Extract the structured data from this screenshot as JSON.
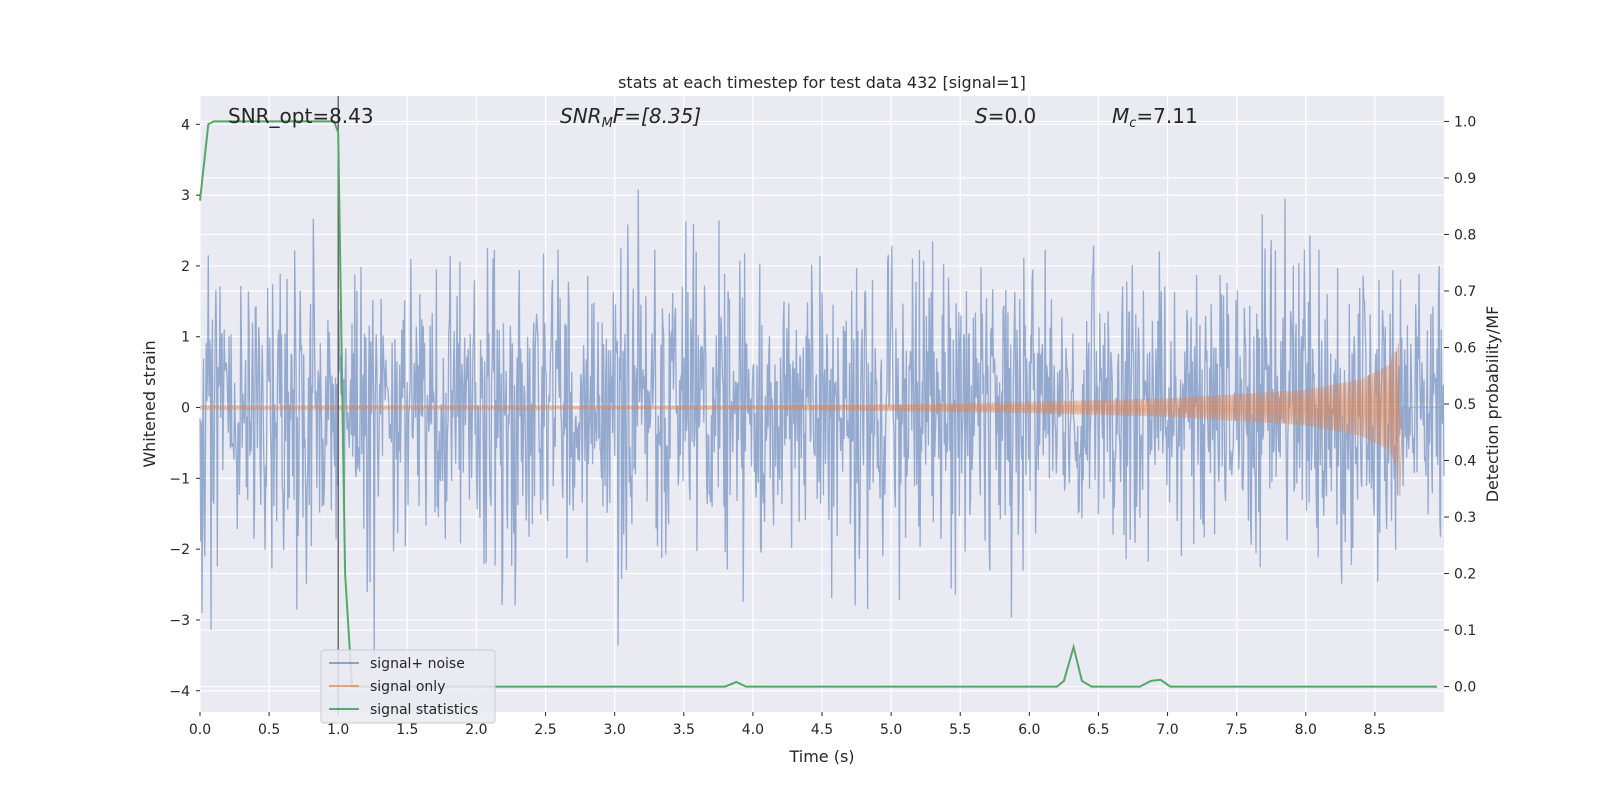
{
  "chart_data": {
    "type": "line",
    "title": "stats at each timestep for test data 432 [signal=1]",
    "xlabel": "Time (s)",
    "ylabel": "Whitened strain",
    "ylabel_right": "Detection probability/MF",
    "xlim": [
      0.0,
      9.0
    ],
    "ylim": [
      -4.3,
      4.4
    ],
    "ylim_right": [
      -0.045,
      1.045
    ],
    "x_ticks": [
      "0.0",
      "0.5",
      "1.0",
      "1.5",
      "2.0",
      "2.5",
      "3.0",
      "3.5",
      "4.0",
      "4.5",
      "5.0",
      "5.5",
      "6.0",
      "6.5",
      "7.0",
      "7.5",
      "8.0",
      "8.5"
    ],
    "y_ticks": [
      "4",
      "3",
      "2",
      "1",
      "0",
      "−1",
      "−2",
      "−3",
      "−4"
    ],
    "y_ticks_right": [
      "1.0",
      "0.9",
      "0.8",
      "0.7",
      "0.6",
      "0.5",
      "0.4",
      "0.3",
      "0.2",
      "0.1",
      "0.0"
    ],
    "grid": true,
    "legend_position": "lower-left",
    "annotations": {
      "snr_opt": "SNR_opt=8.43",
      "snr_mf_base": "SNR",
      "snr_mf_sub": "M",
      "snr_mf_rest": "F=[8.35]",
      "s_var": "S",
      "s_rest": "=0.0",
      "mc_var": "M",
      "mc_sub": "c",
      "mc_rest": "=7.11"
    },
    "vline_x": 1.0,
    "series": [
      {
        "name": "signal+ noise",
        "color": "#4c72b0",
        "axis": "left",
        "noise_std": 1.05,
        "x_range": [
          0.0,
          9.0
        ]
      },
      {
        "name": "signal only",
        "color": "#dd8452",
        "axis": "left",
        "envelope": [
          [
            0.0,
            0.02
          ],
          [
            2.0,
            0.02
          ],
          [
            4.0,
            0.03
          ],
          [
            5.0,
            0.05
          ],
          [
            6.0,
            0.08
          ],
          [
            7.0,
            0.13
          ],
          [
            8.0,
            0.25
          ],
          [
            8.4,
            0.4
          ],
          [
            8.6,
            0.6
          ],
          [
            8.67,
            0.9
          ]
        ],
        "final_dip": -1.25,
        "end_time": 8.67
      },
      {
        "name": "signal statistics",
        "color": "#55a868",
        "axis": "right",
        "x": [
          0.0,
          0.06,
          0.1,
          0.2,
          0.5,
          0.8,
          0.97,
          1.0,
          1.05,
          1.1,
          1.2,
          1.5,
          2.0,
          2.5,
          3.0,
          3.5,
          3.8,
          3.88,
          3.95,
          4.5,
          5.0,
          5.5,
          6.0,
          6.2,
          6.25,
          6.32,
          6.38,
          6.45,
          6.8,
          6.88,
          6.95,
          7.02,
          7.5,
          8.0,
          8.5,
          8.95
        ],
        "y": [
          0.86,
          0.995,
          1.0,
          1.0,
          1.0,
          1.0,
          1.0,
          0.98,
          0.2,
          0.0,
          0.0,
          0.0,
          0.0,
          0.0,
          0.0,
          0.0,
          0.0,
          0.008,
          0.0,
          0.0,
          0.0,
          0.0,
          0.0,
          0.0,
          0.01,
          0.07,
          0.01,
          0.0,
          0.0,
          0.01,
          0.012,
          0.0,
          0.0,
          0.0,
          0.0,
          0.0
        ]
      }
    ]
  }
}
